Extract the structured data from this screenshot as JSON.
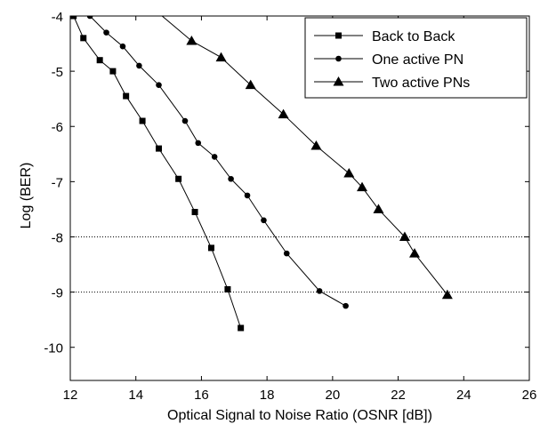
{
  "chart_data": {
    "type": "line",
    "xlabel": "Optical Signal to Noise Ratio (OSNR [dB])",
    "ylabel": "Log (BER)",
    "xlim": [
      12,
      26
    ],
    "ylim": [
      -10.6,
      -4
    ],
    "x_ticks": [
      12,
      14,
      16,
      18,
      20,
      22,
      24,
      26
    ],
    "y_ticks": [
      -4,
      -5,
      -6,
      -7,
      -8,
      -9,
      -10
    ],
    "x_tick_labels": [
      "12",
      "14",
      "16",
      "18",
      "20",
      "22",
      "24",
      "26"
    ],
    "y_tick_labels": [
      "-4",
      "-5",
      "-6",
      "-7",
      "-8",
      "-9",
      "-10"
    ],
    "grid": "dotted horizontal at -8 and -9",
    "legend_position": "top-right",
    "series": [
      {
        "name": "Back to Back",
        "marker": "square",
        "x": [
          12.1,
          12.4,
          12.9,
          13.3,
          13.7,
          14.2,
          14.7,
          15.3,
          15.8,
          16.3,
          16.8,
          17.2
        ],
        "y": [
          -4.0,
          -4.4,
          -4.8,
          -5.0,
          -5.45,
          -5.9,
          -6.4,
          -6.95,
          -7.55,
          -8.2,
          -8.95,
          -9.65
        ]
      },
      {
        "name": "One active PN",
        "marker": "circle",
        "x": [
          12.6,
          13.1,
          13.6,
          14.1,
          14.7,
          15.5,
          15.9,
          16.4,
          16.9,
          17.4,
          17.9,
          18.6,
          19.6,
          20.4
        ],
        "y": [
          -4.0,
          -4.3,
          -4.55,
          -4.9,
          -5.25,
          -5.9,
          -6.3,
          -6.55,
          -6.95,
          -7.25,
          -7.7,
          -8.3,
          -8.98,
          -9.25
        ]
      },
      {
        "name": "Two active PNs",
        "marker": "triangle",
        "x": [
          15.7,
          16.6,
          17.5,
          18.5,
          19.5,
          20.5,
          20.9,
          21.4,
          22.2,
          22.5,
          23.5
        ],
        "y": [
          -4.45,
          -4.75,
          -5.25,
          -5.78,
          -6.35,
          -6.85,
          -7.1,
          -7.5,
          -8.0,
          -8.3,
          -9.05
        ]
      }
    ]
  }
}
